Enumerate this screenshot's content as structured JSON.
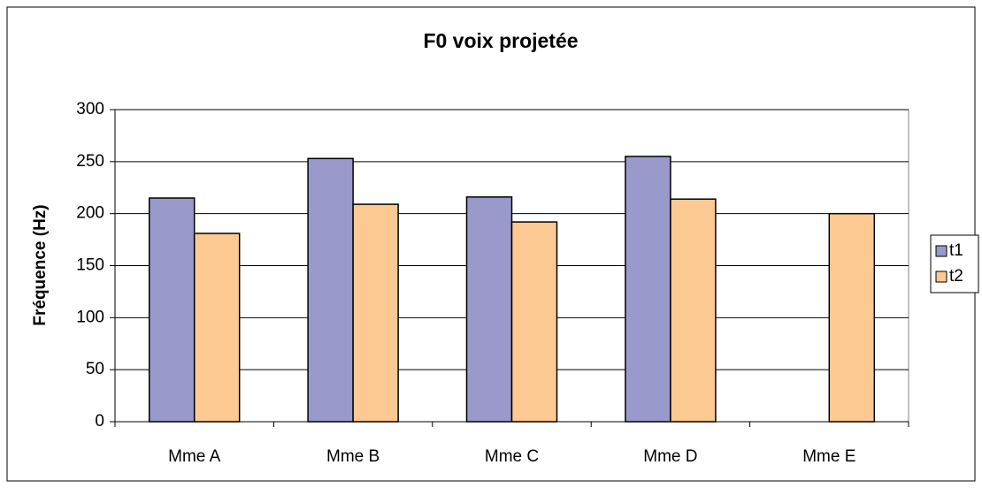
{
  "chart_data": {
    "type": "bar",
    "title": "F0 voix projetée",
    "y_label": "Fréquence (Hz)",
    "categories": [
      "Mme A",
      "Mme B",
      "Mme C",
      "Mme D",
      "Mme E"
    ],
    "series": [
      {
        "name": "t1",
        "color": "#9999cc",
        "values": [
          215,
          253,
          216,
          255,
          null
        ]
      },
      {
        "name": "t2",
        "color": "#fcc992",
        "values": [
          181,
          209,
          192,
          214,
          200
        ]
      }
    ],
    "ylim": [
      0,
      300
    ],
    "yticks": [
      0,
      50,
      100,
      150,
      200,
      250,
      300
    ],
    "grid": true,
    "legend": "right"
  }
}
